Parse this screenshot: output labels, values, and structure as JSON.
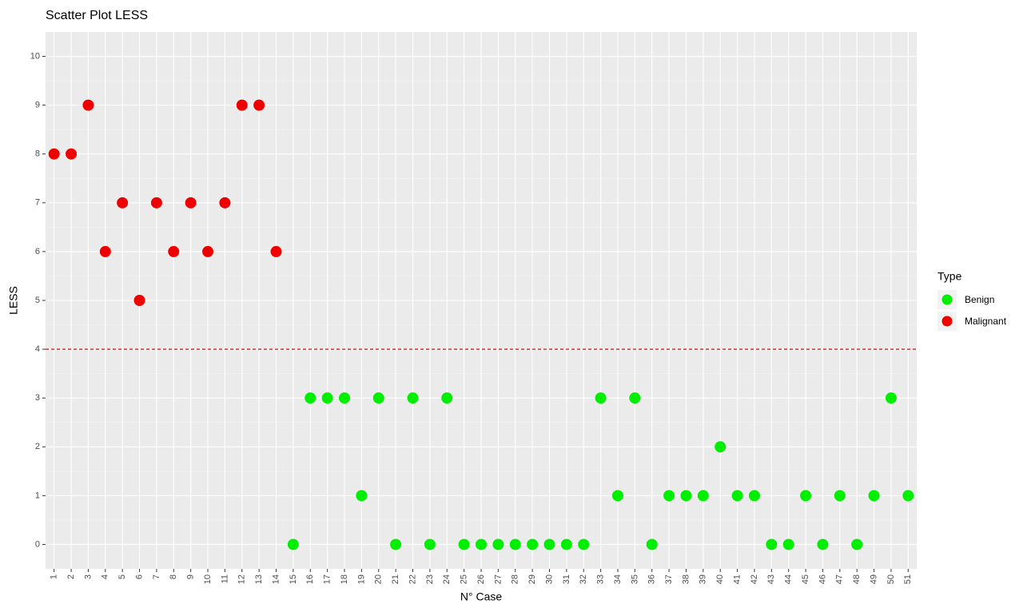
{
  "chart_data": {
    "type": "scatter",
    "title": "Scatter Plot LESS",
    "x_label": "N° Case",
    "y_label": "LESS",
    "legend_title": "Type",
    "legend": "right",
    "categories": [
      "1",
      "2",
      "3",
      "4",
      "5",
      "6",
      "7",
      "8",
      "9",
      "10",
      "11",
      "12",
      "13",
      "14",
      "15",
      "16",
      "17",
      "18",
      "19",
      "20",
      "21",
      "22",
      "23",
      "24",
      "25",
      "26",
      "27",
      "28",
      "29",
      "30",
      "31",
      "32",
      "33",
      "34",
      "35",
      "36",
      "37",
      "38",
      "39",
      "40",
      "41",
      "42",
      "43",
      "44",
      "45",
      "46",
      "47",
      "48",
      "49",
      "50",
      "51"
    ],
    "series": [
      {
        "name": "Benign",
        "color": "#00ee00",
        "values": [
          null,
          null,
          null,
          null,
          null,
          null,
          null,
          null,
          null,
          null,
          null,
          null,
          null,
          null,
          0,
          3,
          3,
          3,
          1,
          3,
          0,
          3,
          0,
          3,
          0,
          0,
          0,
          0,
          0,
          0,
          0,
          0,
          3,
          1,
          3,
          0,
          1,
          1,
          1,
          2,
          1,
          1,
          0,
          0,
          1,
          0,
          1,
          0,
          1,
          3,
          1
        ]
      },
      {
        "name": "Malignant",
        "color": "#ee0000",
        "values": [
          8,
          8,
          9,
          6,
          7,
          5,
          7,
          6,
          7,
          6,
          7,
          9,
          9,
          6,
          null,
          null,
          null,
          null,
          null,
          null,
          null,
          null,
          null,
          null,
          null,
          null,
          null,
          null,
          null,
          null,
          null,
          null,
          null,
          null,
          null,
          null,
          null,
          null,
          null,
          null,
          null,
          null,
          null,
          null,
          null,
          null,
          null,
          null,
          null,
          null,
          null
        ]
      }
    ],
    "hline": 4,
    "hline_color": "#ee0000",
    "ylim": [
      -0.5,
      10.5
    ],
    "yticks": [
      0,
      1,
      2,
      3,
      4,
      5,
      6,
      7,
      8,
      9,
      10
    ],
    "grid": true
  }
}
